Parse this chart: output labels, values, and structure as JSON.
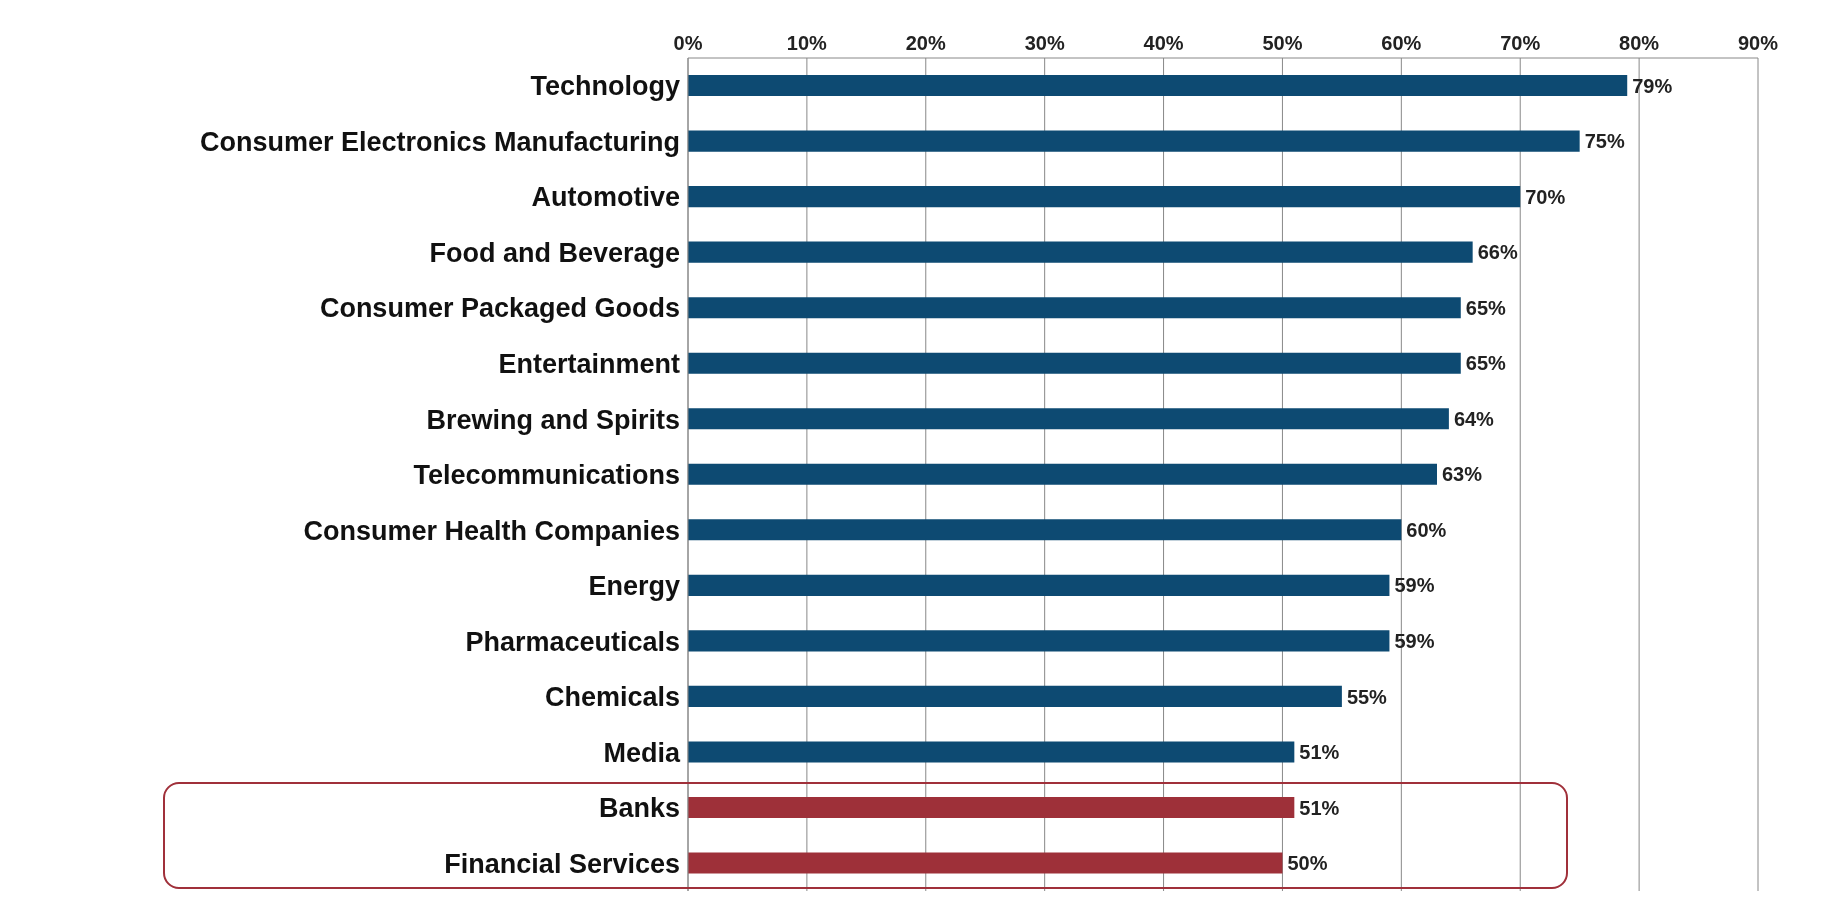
{
  "chart_data": {
    "type": "bar",
    "orientation": "horizontal",
    "categories": [
      "Technology",
      "Consumer Electronics Manufacturing",
      "Automotive",
      "Food and Beverage",
      "Consumer Packaged Goods",
      "Entertainment",
      "Brewing and Spirits",
      "Telecommunications",
      "Consumer Health Companies",
      "Energy",
      "Pharmaceuticals",
      "Chemicals",
      "Media",
      "Banks",
      "Financial Services"
    ],
    "values": [
      79,
      75,
      70,
      66,
      65,
      65,
      64,
      63,
      60,
      59,
      59,
      55,
      51,
      51,
      50
    ],
    "value_labels": [
      "79%",
      "75%",
      "70%",
      "66%",
      "65%",
      "65%",
      "64%",
      "63%",
      "60%",
      "59%",
      "59%",
      "55%",
      "51%",
      "51%",
      "50%"
    ],
    "colors": [
      "#0d4a72",
      "#0d4a72",
      "#0d4a72",
      "#0d4a72",
      "#0d4a72",
      "#0d4a72",
      "#0d4a72",
      "#0d4a72",
      "#0d4a72",
      "#0d4a72",
      "#0d4a72",
      "#0d4a72",
      "#0d4a72",
      "#9e3039",
      "#9e3039"
    ],
    "xlim": [
      0,
      90
    ],
    "xticks": [
      {
        "value": 0,
        "label": "0%"
      },
      {
        "value": 10,
        "label": "10%"
      },
      {
        "value": 20,
        "label": "20%"
      },
      {
        "value": 30,
        "label": "30%"
      },
      {
        "value": 40,
        "label": "40%"
      },
      {
        "value": 50,
        "label": "50%"
      },
      {
        "value": 60,
        "label": "60%"
      },
      {
        "value": 70,
        "label": "70%"
      },
      {
        "value": 80,
        "label": "80%"
      },
      {
        "value": 90,
        "label": "90%"
      }
    ],
    "grid": "x",
    "legend": false
  }
}
